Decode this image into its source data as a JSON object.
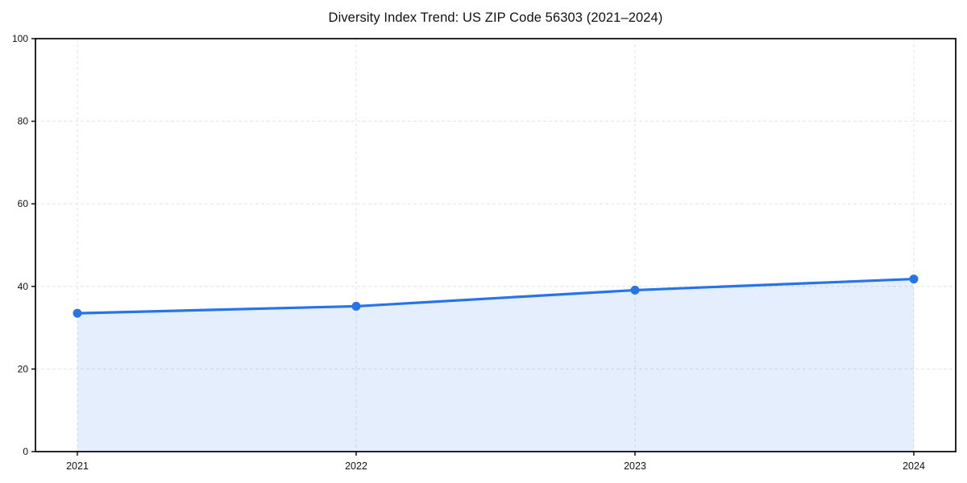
{
  "chart_data": {
    "type": "line",
    "title": "Diversity Index Trend: US ZIP Code 56303 (2021–2024)",
    "x": [
      "2021",
      "2022",
      "2023",
      "2024"
    ],
    "series": [
      {
        "name": "Diversity Index",
        "values": [
          33.5,
          35.2,
          39.1,
          41.8
        ]
      }
    ],
    "xlabel": "",
    "ylabel": "",
    "ylim": [
      0,
      100
    ],
    "yticks": [
      0,
      20,
      40,
      60,
      80,
      100
    ],
    "grid": "dashed",
    "legend_position": "none",
    "marker": "circle",
    "area_fill": true,
    "colors": {
      "line": "#2674e8",
      "marker": "#2674e8",
      "area_fill": "rgba(38,116,232,0.12)",
      "grid": "#e3e3e3",
      "spine": "#000000",
      "tick_text": "#111111",
      "background": "#ffffff"
    }
  }
}
